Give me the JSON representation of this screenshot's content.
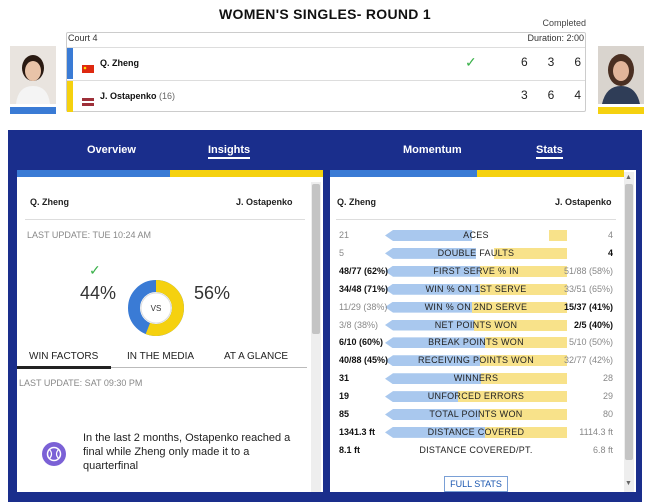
{
  "header": {
    "title": "WOMEN'S SINGLES- ROUND 1",
    "status": "Completed"
  },
  "match": {
    "court": "Court 4",
    "duration": "Duration: 2:00",
    "players": [
      {
        "name": "Q. Zheng",
        "seed": "",
        "sets": [
          "6",
          "3",
          "6"
        ],
        "winner": true,
        "color": "#3a7bd5",
        "flag": "china-flag-icon"
      },
      {
        "name": "J. Ostapenko",
        "seed": "(16)",
        "sets": [
          "3",
          "6",
          "4"
        ],
        "winner": false,
        "color": "#f5d10f",
        "flag": "latvia-flag-icon"
      }
    ]
  },
  "tabs": [
    {
      "label": "Overview"
    },
    {
      "label": "Insights"
    },
    {
      "label": "Momentum"
    },
    {
      "label": "Stats"
    }
  ],
  "insights": {
    "p1": "Q. Zheng",
    "p2": "J. Ostapenko",
    "last_update": "LAST UPDATE: TUE 10:24 AM",
    "p1_pct": "44%",
    "p2_pct": "56%",
    "p1_value": 44,
    "p2_value": 56,
    "vs": "VS",
    "subtabs": [
      "WIN FACTORS",
      "IN THE MEDIA",
      "AT A GLANCE"
    ],
    "last_update2": "LAST UPDATE: SAT 09:30 PM",
    "insight_text": "In the last 2 months, Ostapenko reached a final while Zheng only made it to a quarterfinal"
  },
  "stats": {
    "p1": "Q. Zheng",
    "p2": "J. Ostapenko",
    "full_stats": "FULL STATS",
    "rows": [
      {
        "label": "ACES",
        "left": "21",
        "right": "4",
        "lb": false,
        "rb": false,
        "lw": 0.48,
        "rw": 0.1
      },
      {
        "label": "DOUBLE FAULTS",
        "left": "5",
        "right": "4",
        "lb": false,
        "rb": true,
        "lw": 0.5,
        "rw": 0.4
      },
      {
        "label": "FIRST SERVE % IN",
        "left": "48/77 (62%)",
        "right": "51/88 (58%)",
        "lb": true,
        "rb": false,
        "lw": 0.52,
        "rw": 0.48
      },
      {
        "label": "WIN % ON 1ST SERVE",
        "left": "34/48 (71%)",
        "right": "33/51 (65%)",
        "lb": true,
        "rb": false,
        "lw": 0.52,
        "rw": 0.48
      },
      {
        "label": "WIN % ON 2ND SERVE",
        "left": "11/29 (38%)",
        "right": "15/37 (41%)",
        "lb": false,
        "rb": true,
        "lw": 0.48,
        "rw": 0.52
      },
      {
        "label": "NET POINTS WON",
        "left": "3/8 (38%)",
        "right": "2/5 (40%)",
        "lb": false,
        "rb": true,
        "lw": 0.49,
        "rw": 0.51
      },
      {
        "label": "BREAK POINTS WON",
        "left": "6/10 (60%)",
        "right": "5/10 (50%)",
        "lb": true,
        "rb": false,
        "lw": 0.55,
        "rw": 0.45
      },
      {
        "label": "RECEIVING POINTS WON",
        "left": "40/88 (45%)",
        "right": "32/77 (42%)",
        "lb": true,
        "rb": false,
        "lw": 0.52,
        "rw": 0.48
      },
      {
        "label": "WINNERS",
        "left": "31",
        "right": "28",
        "lb": true,
        "rb": false,
        "lw": 0.53,
        "rw": 0.47
      },
      {
        "label": "UNFORCED ERRORS",
        "left": "19",
        "right": "29",
        "lb": true,
        "rb": false,
        "lw": 0.4,
        "rw": 0.6
      },
      {
        "label": "TOTAL POINTS WON",
        "left": "85",
        "right": "80",
        "lb": true,
        "rb": false,
        "lw": 0.52,
        "rw": 0.48
      },
      {
        "label": "DISTANCE COVERED",
        "left": "1341.3 ft",
        "right": "1114.3 ft",
        "lb": true,
        "rb": false,
        "lw": 0.55,
        "rw": 0.45
      },
      {
        "label": "DISTANCE COVERED/PT.",
        "left": "8.1 ft",
        "right": "6.8 ft",
        "lb": true,
        "rb": false,
        "lw": 0.0,
        "rw": 0.0
      }
    ]
  },
  "colors": {
    "blue": "#3a7bd5",
    "yellow": "#f5d10f",
    "navy": "#1a2e8c",
    "bar_blue": "#a9c8ee",
    "bar_yellow": "#f8e28a"
  }
}
